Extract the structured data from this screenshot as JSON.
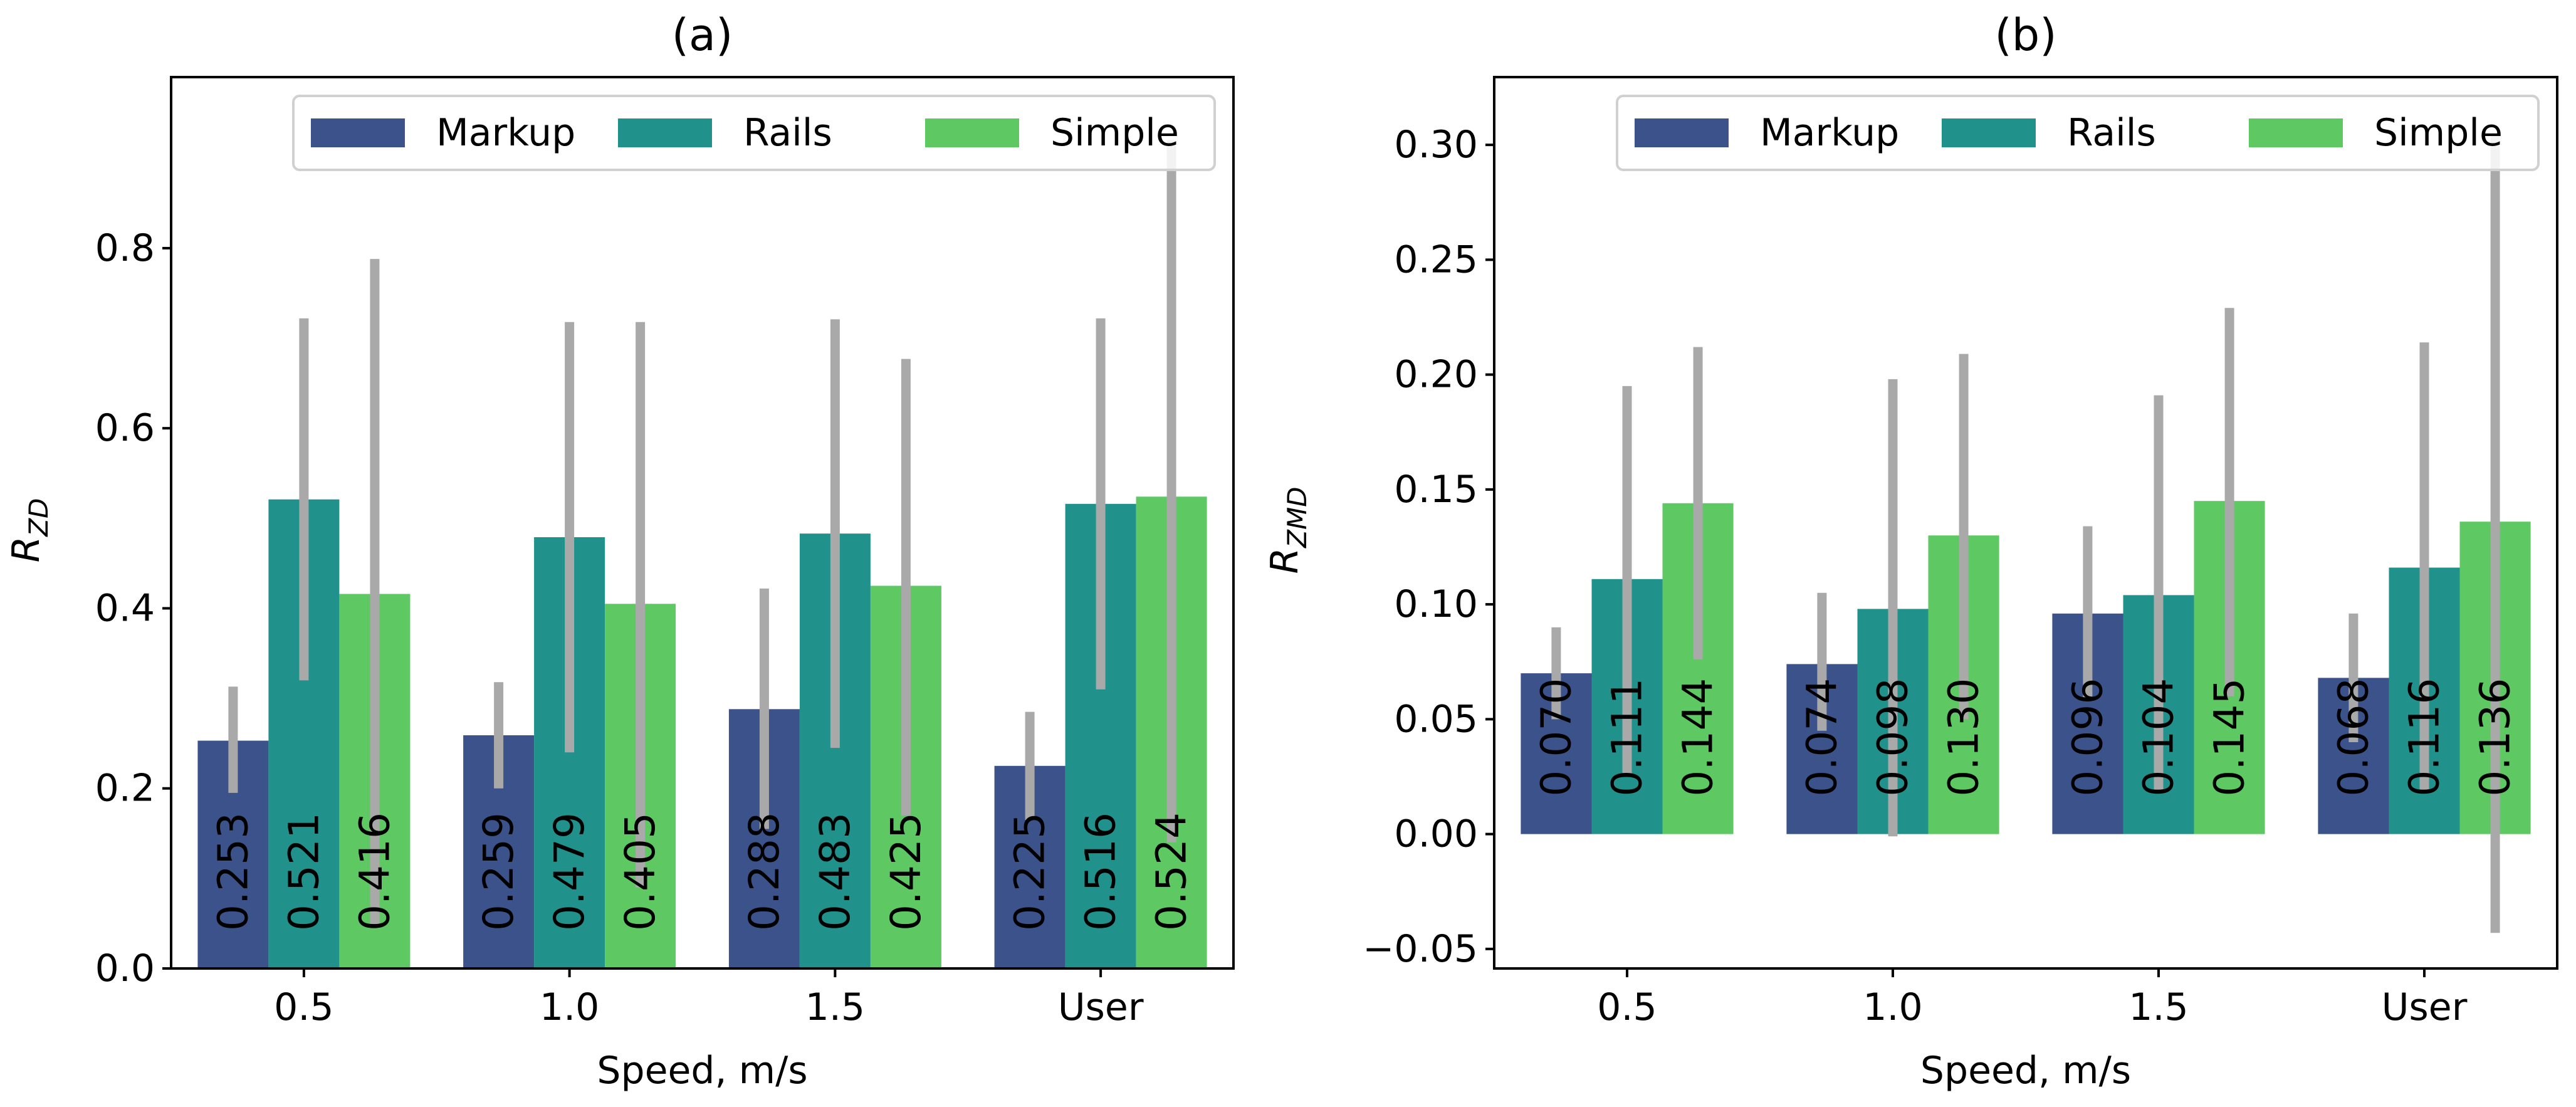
{
  "colors": {
    "Markup": "#3b528b",
    "Rails": "#21918c",
    "Simple": "#5ec962",
    "errorbar": "#a9a9a9",
    "axes": "#000000"
  },
  "chart_data": [
    {
      "type": "bar",
      "title": "(a)",
      "xlabel": "Speed, m/s",
      "ylabel_base": "R",
      "ylabel_sub": "ZD",
      "ylim": [
        0,
        0.99
      ],
      "yticks": [
        0.0,
        0.2,
        0.4,
        0.6,
        0.8
      ],
      "ytick_labels": [
        "0.0",
        "0.2",
        "0.4",
        "0.6",
        "0.8"
      ],
      "categories": [
        "0.5",
        "1.0",
        "1.5",
        "User"
      ],
      "legend_position": "top-right",
      "grid": false,
      "series": [
        {
          "name": "Markup",
          "values": [
            0.253,
            0.259,
            0.288,
            0.225
          ],
          "labels": [
            "0.253",
            "0.259",
            "0.288",
            "0.225"
          ],
          "err_low": [
            0.195,
            0.2,
            0.155,
            0.165
          ],
          "err_high": [
            0.313,
            0.318,
            0.422,
            0.285
          ]
        },
        {
          "name": "Rails",
          "values": [
            0.521,
            0.479,
            0.483,
            0.516
          ],
          "labels": [
            "0.521",
            "0.479",
            "0.483",
            "0.516"
          ],
          "err_low": [
            0.32,
            0.24,
            0.245,
            0.31
          ],
          "err_high": [
            0.722,
            0.718,
            0.721,
            0.722
          ]
        },
        {
          "name": "Simple",
          "values": [
            0.416,
            0.405,
            0.425,
            0.524
          ],
          "labels": [
            "0.416",
            "0.405",
            "0.425",
            "0.524"
          ],
          "err_low": [
            0.045,
            0.09,
            0.17,
            0.14
          ],
          "err_high": [
            0.788,
            0.718,
            0.677,
            0.92
          ]
        }
      ]
    },
    {
      "type": "bar",
      "title": "(b)",
      "xlabel": "Speed, m/s",
      "ylabel_base": "R",
      "ylabel_sub": "ZMD",
      "ylim": [
        -0.0585,
        0.3295
      ],
      "yticks": [
        -0.05,
        0.0,
        0.05,
        0.1,
        0.15,
        0.2,
        0.25,
        0.3
      ],
      "ytick_labels": [
        "−0.05",
        "0.00",
        "0.05",
        "0.10",
        "0.15",
        "0.20",
        "0.25",
        "0.30"
      ],
      "categories": [
        "0.5",
        "1.0",
        "1.5",
        "User"
      ],
      "legend_position": "top-right",
      "grid": false,
      "series": [
        {
          "name": "Markup",
          "values": [
            0.07,
            0.074,
            0.096,
            0.068
          ],
          "labels": [
            "0.070",
            "0.074",
            "0.096",
            "0.068"
          ],
          "err_low": [
            0.05,
            0.045,
            0.058,
            0.04
          ],
          "err_high": [
            0.09,
            0.105,
            0.134,
            0.096
          ]
        },
        {
          "name": "Rails",
          "values": [
            0.111,
            0.098,
            0.104,
            0.116
          ],
          "labels": [
            "0.111",
            "0.098",
            "0.104",
            "0.116"
          ],
          "err_low": [
            0.025,
            -0.001,
            0.018,
            0.018
          ],
          "err_high": [
            0.195,
            0.198,
            0.191,
            0.214
          ]
        },
        {
          "name": "Simple",
          "values": [
            0.144,
            0.13,
            0.145,
            0.136
          ],
          "labels": [
            "0.144",
            "0.130",
            "0.145",
            "0.136"
          ],
          "err_low": [
            0.076,
            0.05,
            0.06,
            -0.043
          ],
          "err_high": [
            0.212,
            0.209,
            0.229,
            0.305
          ]
        }
      ]
    }
  ]
}
